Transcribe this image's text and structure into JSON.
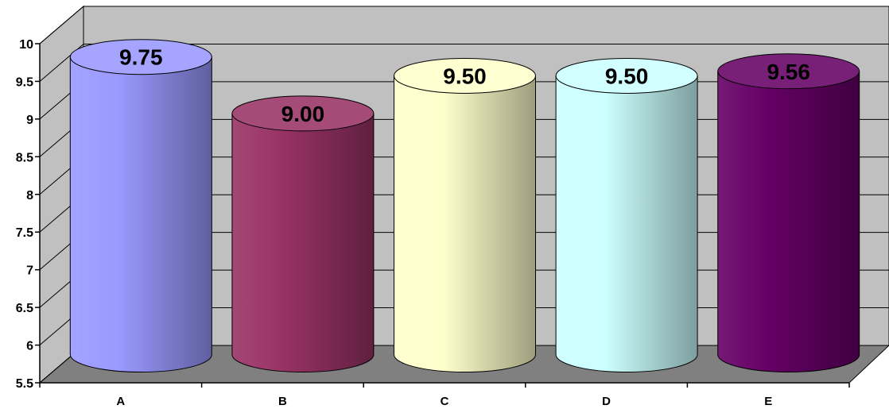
{
  "chart_data": {
    "type": "bar",
    "style": "3d-cylinder",
    "categories": [
      "A",
      "B",
      "C",
      "D",
      "E"
    ],
    "values": [
      9.75,
      9.0,
      9.5,
      9.5,
      9.56
    ],
    "data_labels": [
      "9.75",
      "9.00",
      "9.50",
      "9.50",
      "9.56"
    ],
    "ylim": [
      5.5,
      10
    ],
    "yticks": [
      5.5,
      6,
      6.5,
      7,
      7.5,
      8,
      8.5,
      9,
      9.5,
      10
    ],
    "ytick_labels": [
      "5.5",
      "6",
      "6.5",
      "7",
      "7.5",
      "8",
      "8.5",
      "9",
      "9.5",
      "10"
    ],
    "title": "",
    "xlabel": "",
    "ylabel": "",
    "grid": true,
    "legend": "none",
    "colors": [
      "#9999ff",
      "#993366",
      "#ffffcc",
      "#ccffff",
      "#660066"
    ],
    "wall_color": "#c0c0c0",
    "floor_color": "#808080"
  }
}
